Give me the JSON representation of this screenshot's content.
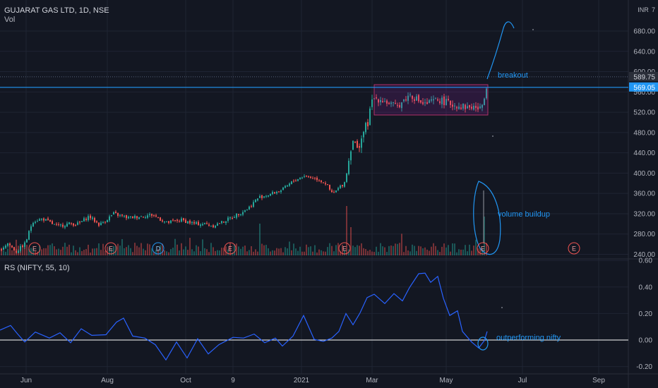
{
  "header": {
    "symbol": "GUJARAT GAS LTD, 1D, NSE",
    "volume_label": "Vol",
    "rs_label": "RS (NIFTY, 55, 10)"
  },
  "currency": "INR",
  "colors": {
    "background": "#131722",
    "grid": "#1f2433",
    "up": "#26a69a",
    "down": "#ef5350",
    "annotation": "#2196f3",
    "range_box": "#b0306a",
    "rs_line": "#2962ff",
    "zero_line": "#ffffff"
  },
  "chart_data": [
    {
      "type": "candlestick",
      "title": "GUJARAT GAS LTD, 1D, NSE",
      "ylim": [
        220,
        720
      ],
      "yticks": [
        "680.00",
        "640.00",
        "600.00",
        "560.00",
        "520.00",
        "480.00",
        "440.00",
        "400.00",
        "360.00",
        "320.00",
        "280.00",
        "240.00"
      ],
      "xticks": [
        "Jun",
        "Aug",
        "Oct",
        "9",
        "2021",
        "Mar",
        "May",
        "Jul",
        "Sep"
      ],
      "last_price": "589.75",
      "level_price": "569.05",
      "annotations": [
        "breakout",
        "volume buildup"
      ],
      "earnings_markers": [
        "E",
        "E",
        "D",
        "E",
        "E",
        "E",
        "E"
      ],
      "approx_close_path": [
        {
          "x": "May",
          "y": 250
        },
        {
          "x": "Jun",
          "y": 262
        },
        {
          "x": "Jul",
          "y": 305
        },
        {
          "x": "Aug",
          "y": 300
        },
        {
          "x": "Sep",
          "y": 315
        },
        {
          "x": "Oct",
          "y": 298
        },
        {
          "x": "Nov",
          "y": 330
        },
        {
          "x": "Dec",
          "y": 370
        },
        {
          "x": "2021",
          "y": 395
        },
        {
          "x": "Feb",
          "y": 380
        },
        {
          "x": "Mar",
          "y": 545
        },
        {
          "x": "Apr",
          "y": 540
        },
        {
          "x": "May",
          "y": 532
        },
        {
          "x": "Jun",
          "y": 590
        }
      ]
    },
    {
      "type": "line",
      "title": "RS (NIFTY, 55, 10)",
      "ylim": [
        -0.22,
        0.62
      ],
      "yticks": [
        "0.60",
        "0.40",
        "0.20",
        "0.00",
        "-0.20"
      ],
      "annotations": [
        "outperforming nifty"
      ],
      "approx_values": [
        {
          "x": "May",
          "y": 0.08
        },
        {
          "x": "Jun",
          "y": 0.05
        },
        {
          "x": "Jul",
          "y": 0.02
        },
        {
          "x": "Aug",
          "y": 0.07
        },
        {
          "x": "Sep",
          "y": -0.05
        },
        {
          "x": "Oct",
          "y": -0.06
        },
        {
          "x": "Nov",
          "y": -0.01
        },
        {
          "x": "Dec",
          "y": 0.03
        },
        {
          "x": "2021",
          "y": 0.14
        },
        {
          "x": "Feb",
          "y": 0.03
        },
        {
          "x": "Mar",
          "y": 0.33
        },
        {
          "x": "Apr",
          "y": 0.45
        },
        {
          "x": "May",
          "y": 0.12
        },
        {
          "x": "Jun",
          "y": 0.08
        }
      ]
    }
  ]
}
